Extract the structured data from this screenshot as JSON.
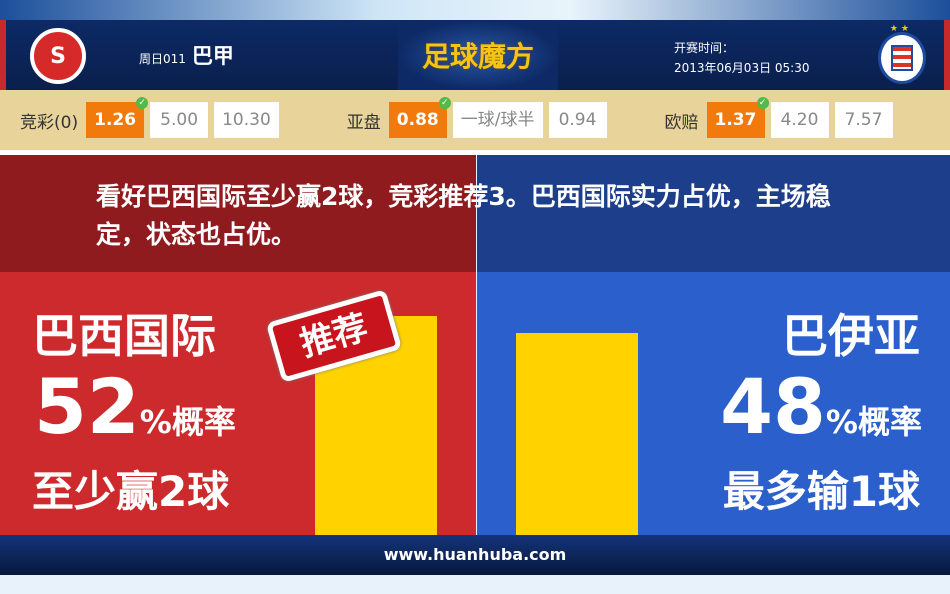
{
  "header": {
    "week": "周日011",
    "league": "巴甲",
    "brand": "足球魔方",
    "time_label": "开赛时间：",
    "time": "2013年06月03日 05:30",
    "home_logo": "SCI",
    "away_logo": "ECB"
  },
  "odds": [
    {
      "label": "竞彩(0)",
      "values": [
        "1.26",
        "5.00",
        "10.30"
      ],
      "selected": 0
    },
    {
      "label": "亚盘",
      "values": [
        "0.88",
        "一球/球半",
        "0.94"
      ],
      "selected": 0
    },
    {
      "label": "欧赔",
      "values": [
        "1.37",
        "4.20",
        "7.57"
      ],
      "selected": 0
    }
  ],
  "comment": "看好巴西国际至少赢2球，竞彩推荐3。巴西国际实力占优，主场稳定，状态也占优。",
  "home": {
    "name": "巴西国际",
    "pct": "52",
    "pct_suffix": "%概率",
    "outcome": "至少赢2球",
    "stamp": "推荐"
  },
  "away": {
    "name": "巴伊亚",
    "pct": "48",
    "pct_suffix": "%概率",
    "outcome": "最多输1球"
  },
  "chart_data": {
    "type": "bar",
    "categories": [
      "巴西国际",
      "巴伊亚"
    ],
    "values": [
      52,
      48
    ]
  },
  "colors": {
    "home": "#cc2a2c",
    "away": "#2b5fcb",
    "bar": "#ffd200",
    "selected": "#f27a0c"
  },
  "footer": "www.huanhuba.com"
}
